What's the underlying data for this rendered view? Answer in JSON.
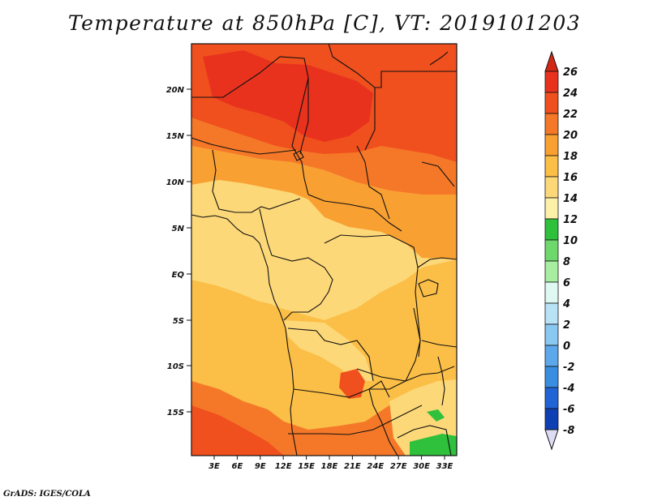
{
  "title": "Temperature at 850hPa [C], VT: 2019101203",
  "credit": "GrADS: IGES/COLA",
  "lat_labels": [
    "20N",
    "15N",
    "10N",
    "5N",
    "EQ",
    "5S",
    "10S",
    "15S"
  ],
  "lon_labels": [
    "3E",
    "6E",
    "9E",
    "12E",
    "15E",
    "18E",
    "21E",
    "24E",
    "27E",
    "30E",
    "33E"
  ],
  "colorbar": {
    "labels": [
      "26",
      "24",
      "22",
      "20",
      "18",
      "16",
      "14",
      "12",
      "10",
      "8",
      "6",
      "4",
      "2",
      "0",
      "-2",
      "-4",
      "-6",
      "-8"
    ],
    "colors": [
      "#e8321e",
      "#f0501e",
      "#f57828",
      "#f9a032",
      "#fbbe46",
      "#fdd878",
      "#fdf0a8",
      "#2fc03c",
      "#6ed86c",
      "#a8eea0",
      "#e0f8f2",
      "#b8e2f6",
      "#8ac8f2",
      "#5ca8ea",
      "#3a8ee2",
      "#2064d6",
      "#0e40b4",
      "#081c7e"
    ],
    "top_arrow_color": "#d42814",
    "bottom_arrow_color": "#dcdcf4"
  },
  "field_colors": {
    "t24": "#e8321e",
    "t22": "#f0501e",
    "t20": "#f57828",
    "t18": "#f9a032",
    "t16": "#fbbe46",
    "t14": "#fdd878",
    "t12": "#2fc03c",
    "t10": "#6ed86c"
  }
}
